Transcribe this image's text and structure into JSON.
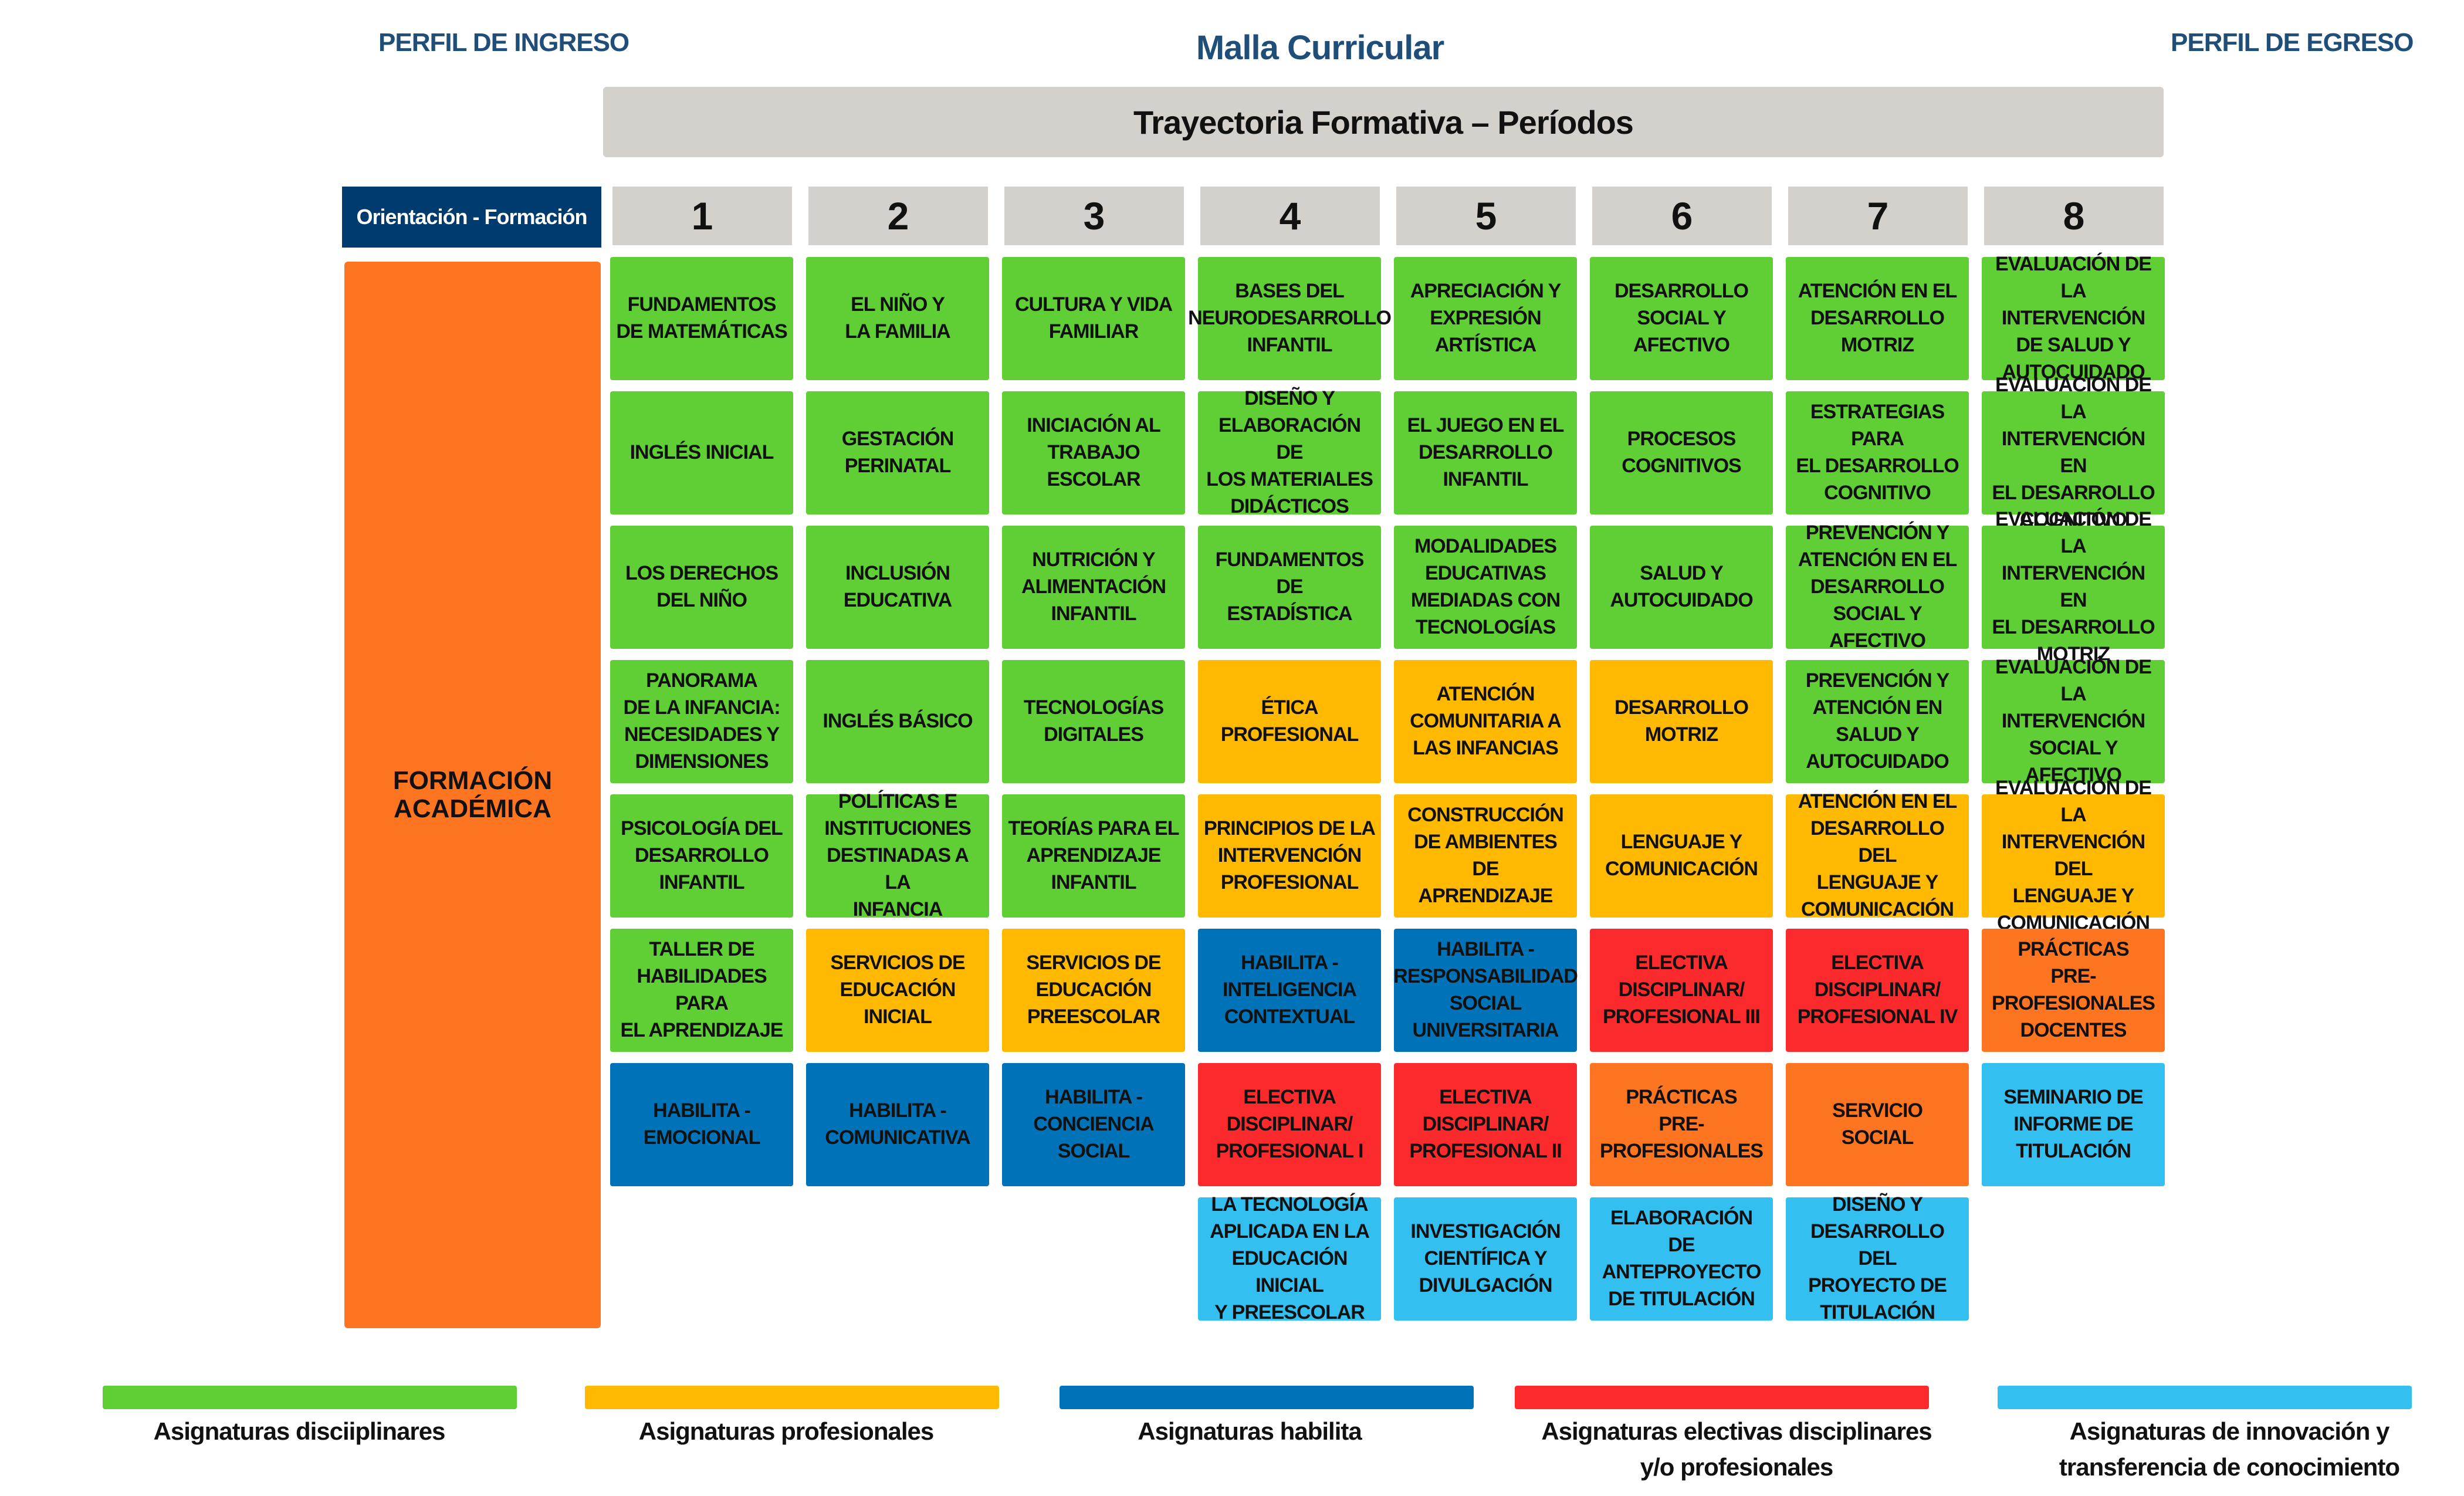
{
  "header": {
    "perfil_ingreso": "PERFIL DE INGRESO",
    "title": "Malla Curricular",
    "perfil_egreso": "PERFIL DE EGRESO",
    "trajectory": "Trayectoria Formativa – Períodos",
    "orientation": "Orientación - Formación"
  },
  "periods": [
    "1",
    "2",
    "3",
    "4",
    "5",
    "6",
    "7",
    "8"
  ],
  "formation_label": "FORMACIÓN\nACADÉMICA",
  "colors": {
    "green": "#5fcf35",
    "yellow": "#ffb900",
    "blue": "#0073b8",
    "red": "#fb2a2c",
    "orange": "#fd7421",
    "cyan": "#33bff0",
    "header_gray": "#d4d1cc",
    "navy": "#003b6f",
    "title_blue": "#1f4e79"
  },
  "columns": [
    [
      {
        "text": "FUNDAMENTOS\nDE MATEMÁTICAS",
        "color": "green"
      },
      {
        "text": "INGLÉS INICIAL",
        "color": "green"
      },
      {
        "text": "LOS DERECHOS\nDEL NIÑO",
        "color": "green"
      },
      {
        "text": "PANORAMA\nDE LA INFANCIA:\nNECESIDADES Y\nDIMENSIONES",
        "color": "green"
      },
      {
        "text": "PSICOLOGÍA DEL\nDESARROLLO\nINFANTIL",
        "color": "green"
      },
      {
        "text": "TALLER DE\nHABILIDADES PARA\nEL APRENDIZAJE",
        "color": "green"
      },
      {
        "text": "HABILITA -\nEMOCIONAL",
        "color": "blue"
      }
    ],
    [
      {
        "text": "EL NIÑO Y\nLA FAMILIA",
        "color": "green"
      },
      {
        "text": "GESTACIÓN\nPERINATAL",
        "color": "green"
      },
      {
        "text": "INCLUSIÓN\nEDUCATIVA",
        "color": "green"
      },
      {
        "text": "INGLÉS BÁSICO",
        "color": "green"
      },
      {
        "text": "POLÍTICAS E\nINSTITUCIONES\nDESTINADAS A LA\nINFANCIA",
        "color": "green"
      },
      {
        "text": "SERVICIOS DE\nEDUCACIÓN\nINICIAL",
        "color": "yellow"
      },
      {
        "text": "HABILITA -\nCOMUNICATIVA",
        "color": "blue"
      }
    ],
    [
      {
        "text": "CULTURA Y VIDA\nFAMILIAR",
        "color": "green"
      },
      {
        "text": "INICIACIÓN AL\nTRABAJO\nESCOLAR",
        "color": "green"
      },
      {
        "text": "NUTRICIÓN Y\nALIMENTACIÓN\nINFANTIL",
        "color": "green"
      },
      {
        "text": "TECNOLOGÍAS\nDIGITALES",
        "color": "green"
      },
      {
        "text": "TEORÍAS PARA EL\nAPRENDIZAJE\nINFANTIL",
        "color": "green"
      },
      {
        "text": "SERVICIOS DE\nEDUCACIÓN\nPREESCOLAR",
        "color": "yellow"
      },
      {
        "text": "HABILITA -\nCONCIENCIA\nSOCIAL",
        "color": "blue"
      }
    ],
    [
      {
        "text": "BASES DEL\nNEURODESARROLLO\nINFANTIL",
        "color": "green"
      },
      {
        "text": "DISEÑO Y\nELABORACIÓN DE\nLOS MATERIALES\nDIDÁCTICOS",
        "color": "green"
      },
      {
        "text": "FUNDAMENTOS DE\nESTADÍSTICA",
        "color": "green"
      },
      {
        "text": "ÉTICA\nPROFESIONAL",
        "color": "yellow"
      },
      {
        "text": "PRINCIPIOS DE LA\nINTERVENCIÓN\nPROFESIONAL",
        "color": "yellow"
      },
      {
        "text": "HABILITA -\nINTELIGENCIA\nCONTEXTUAL",
        "color": "blue"
      },
      {
        "text": "ELECTIVA\nDISCIPLINAR/\nPROFESIONAL I",
        "color": "red"
      },
      {
        "text": "LA TECNOLOGÍA\nAPLICADA EN LA\nEDUCACIÓN INICIAL\nY PREESCOLAR",
        "color": "cyan"
      }
    ],
    [
      {
        "text": "APRECIACIÓN Y\nEXPRESIÓN\nARTÍSTICA",
        "color": "green"
      },
      {
        "text": "EL JUEGO EN EL\nDESARROLLO\nINFANTIL",
        "color": "green"
      },
      {
        "text": "MODALIDADES\nEDUCATIVAS\nMEDIADAS CON\nTECNOLOGÍAS",
        "color": "green"
      },
      {
        "text": "ATENCIÓN\nCOMUNITARIA A\nLAS INFANCIAS",
        "color": "yellow"
      },
      {
        "text": "CONSTRUCCIÓN\nDE AMBIENTES DE\nAPRENDIZAJE",
        "color": "yellow"
      },
      {
        "text": "HABILITA -\nRESPONSABILIDAD\nSOCIAL\nUNIVERSITARIA",
        "color": "blue"
      },
      {
        "text": "ELECTIVA\nDISCIPLINAR/\nPROFESIONAL II",
        "color": "red"
      },
      {
        "text": "INVESTIGACIÓN\nCIENTÍFICA Y\nDIVULGACIÓN",
        "color": "cyan"
      }
    ],
    [
      {
        "text": "DESARROLLO\nSOCIAL Y\nAFECTIVO",
        "color": "green"
      },
      {
        "text": "PROCESOS\nCOGNITIVOS",
        "color": "green"
      },
      {
        "text": "SALUD Y\nAUTOCUIDADO",
        "color": "green"
      },
      {
        "text": "DESARROLLO\nMOTRIZ",
        "color": "yellow"
      },
      {
        "text": "LENGUAJE Y\nCOMUNICACIÓN",
        "color": "yellow"
      },
      {
        "text": "ELECTIVA\nDISCIPLINAR/\nPROFESIONAL III",
        "color": "red"
      },
      {
        "text": "PRÁCTICAS\nPRE-PROFESIONALES",
        "color": "orange"
      },
      {
        "text": "ELABORACIÓN DE\nANTEPROYECTO\nDE TITULACIÓN",
        "color": "cyan"
      }
    ],
    [
      {
        "text": "ATENCIÓN EN EL\nDESARROLLO\nMOTRIZ",
        "color": "green"
      },
      {
        "text": "ESTRATEGIAS PARA\nEL DESARROLLO\nCOGNITIVO",
        "color": "green"
      },
      {
        "text": "PREVENCIÓN Y\nATENCIÓN EN EL\nDESARROLLO\nSOCIAL Y AFECTIVO",
        "color": "green"
      },
      {
        "text": "PREVENCIÓN Y\nATENCIÓN EN\nSALUD Y\nAUTOCUIDADO",
        "color": "green"
      },
      {
        "text": "ATENCIÓN EN EL\nDESARROLLO DEL\nLENGUAJE Y\nCOMUNICACIÓN",
        "color": "yellow"
      },
      {
        "text": "ELECTIVA\nDISCIPLINAR/\nPROFESIONAL IV",
        "color": "red"
      },
      {
        "text": "SERVICIO\nSOCIAL",
        "color": "orange"
      },
      {
        "text": "DISEÑO Y\nDESARROLLO DEL\nPROYECTO DE\nTITULACIÓN",
        "color": "cyan"
      }
    ],
    [
      {
        "text": "EVALUACIÓN DE LA\nINTERVENCIÓN\nDE SALUD Y\nAUTOCUIDADO",
        "color": "green"
      },
      {
        "text": "EVALUACIÓN DE LA\nINTERVENCIÓN EN\nEL DESARROLLO\nCOGNITIVO",
        "color": "green"
      },
      {
        "text": "EVALUACIÓN DE LA\nINTERVENCIÓN EN\nEL DESARROLLO\nMOTRIZ",
        "color": "green"
      },
      {
        "text": "EVALUACIÓN DE\nLA INTERVENCIÓN\nSOCIAL Y\nAFECTIVO",
        "color": "green"
      },
      {
        "text": "EVALUACIÓN DE LA\nINTERVENCIÓN DEL\nLENGUAJE Y\nCOMUNICACIÓN",
        "color": "yellow"
      },
      {
        "text": "PRÁCTICAS\nPRE-PROFESIONALES\nDOCENTES",
        "color": "orange"
      },
      {
        "text": "SEMINARIO DE\nINFORME DE\nTITULACIÓN",
        "color": "cyan"
      }
    ]
  ],
  "legend": [
    {
      "label": "Asignaturas disciiplinares",
      "color": "green"
    },
    {
      "label": "Asignaturas profesionales",
      "color": "yellow"
    },
    {
      "label": "Asignaturas habilita",
      "color": "blue"
    },
    {
      "label": "Asignaturas electivas disciplinares y/o profesionales",
      "color": "red"
    },
    {
      "label": "Asignaturas de innovación y transferencia de conocimiento",
      "color": "cyan"
    }
  ]
}
